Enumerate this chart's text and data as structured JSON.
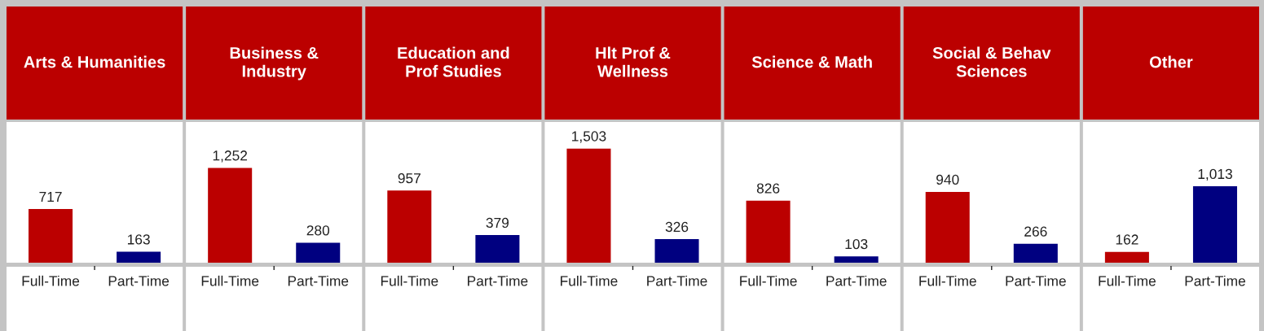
{
  "chart_data": [
    {
      "type": "bar",
      "title": "Arts & Humanities",
      "categories": [
        "Full-Time",
        "Part-Time"
      ],
      "values": [
        717,
        163
      ],
      "value_labels": [
        "717",
        "163"
      ],
      "colors": [
        "#bb0000",
        "#000080"
      ]
    },
    {
      "type": "bar",
      "title": "Business &\nIndustry",
      "categories": [
        "Full-Time",
        "Part-Time"
      ],
      "values": [
        1252,
        280
      ],
      "value_labels": [
        "1,252",
        "280"
      ],
      "colors": [
        "#bb0000",
        "#000080"
      ]
    },
    {
      "type": "bar",
      "title": "Education and\nProf Studies",
      "categories": [
        "Full-Time",
        "Part-Time"
      ],
      "values": [
        957,
        379
      ],
      "value_labels": [
        "957",
        "379"
      ],
      "colors": [
        "#bb0000",
        "#000080"
      ]
    },
    {
      "type": "bar",
      "title": "Hlt Prof &\nWellness",
      "categories": [
        "Full-Time",
        "Part-Time"
      ],
      "values": [
        1503,
        326
      ],
      "value_labels": [
        "1,503",
        "326"
      ],
      "colors": [
        "#bb0000",
        "#000080"
      ]
    },
    {
      "type": "bar",
      "title": "Science & Math",
      "categories": [
        "Full-Time",
        "Part-Time"
      ],
      "values": [
        826,
        103
      ],
      "value_labels": [
        "826",
        "103"
      ],
      "colors": [
        "#bb0000",
        "#000080"
      ]
    },
    {
      "type": "bar",
      "title": "Social & Behav\nSciences",
      "categories": [
        "Full-Time",
        "Part-Time"
      ],
      "values": [
        940,
        266
      ],
      "value_labels": [
        "940",
        "266"
      ],
      "colors": [
        "#bb0000",
        "#000080"
      ]
    },
    {
      "type": "bar",
      "title": "Other",
      "categories": [
        "Full-Time",
        "Part-Time"
      ],
      "values": [
        162,
        1013
      ],
      "value_labels": [
        "162",
        "1,013"
      ],
      "colors": [
        "#bb0000",
        "#000080"
      ]
    }
  ]
}
